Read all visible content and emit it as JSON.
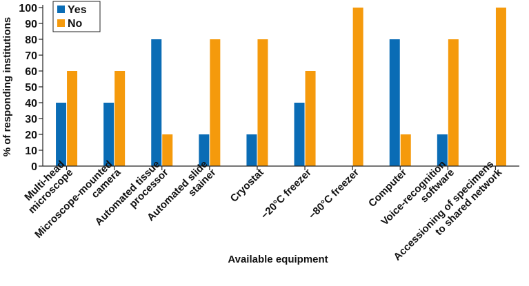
{
  "chart_data": {
    "type": "bar",
    "title": "",
    "xlabel": "Available equipment",
    "ylabel": "% of responding institutions",
    "ylim": [
      0,
      100
    ],
    "yticks": [
      "0",
      "10",
      "20",
      "30",
      "40",
      "50",
      "60",
      "70",
      "80",
      "90",
      "100"
    ],
    "grid": false,
    "legend_position": "top-left",
    "categories": [
      [
        "Multi-head",
        "microscope"
      ],
      [
        "Microscope-mounted",
        "camera"
      ],
      [
        "Automated tissue",
        "processor"
      ],
      [
        "Automated slide",
        "stainer"
      ],
      [
        "Cryostat"
      ],
      [
        "−20°C freezer"
      ],
      [
        "−80°C freezer"
      ],
      [
        "Computer"
      ],
      [
        "Voice-recognition",
        "software"
      ],
      [
        "Accessioning of specimens",
        "to shared network"
      ]
    ],
    "series": [
      {
        "name": "Yes",
        "color": "#0a6cb5",
        "values": [
          40,
          40,
          80,
          20,
          20,
          40,
          0,
          80,
          20,
          0
        ]
      },
      {
        "name": "No",
        "color": "#f59a0c",
        "values": [
          60,
          60,
          20,
          80,
          80,
          60,
          100,
          20,
          80,
          100
        ]
      }
    ]
  }
}
